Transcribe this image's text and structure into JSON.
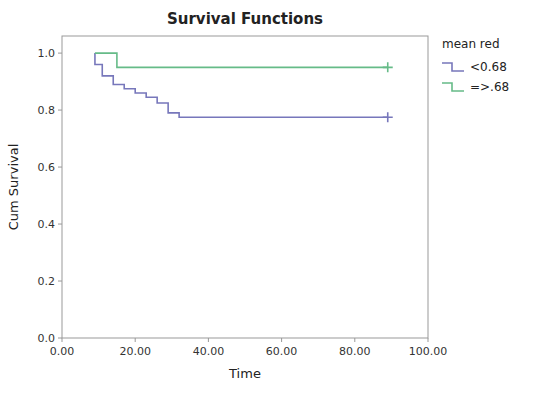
{
  "chart_data": {
    "type": "line",
    "title": "Survival Functions",
    "x_label": "Time",
    "y_label": "Cum Survival",
    "xlim": [
      0,
      100
    ],
    "ylim": [
      0.0,
      1.06
    ],
    "xticks": [
      {
        "value": 0.0,
        "label": "0.00"
      },
      {
        "value": 20.0,
        "label": "20.00"
      },
      {
        "value": 40.0,
        "label": "40.00"
      },
      {
        "value": 60.0,
        "label": "60.00"
      },
      {
        "value": 80.0,
        "label": "80.00"
      },
      {
        "value": 100.0,
        "label": "100.00"
      }
    ],
    "yticks": [
      {
        "value": 0.0,
        "label": "0.0"
      },
      {
        "value": 0.2,
        "label": "0.2"
      },
      {
        "value": 0.4,
        "label": "0.4"
      },
      {
        "value": 0.6,
        "label": "0.6"
      },
      {
        "value": 0.8,
        "label": "0.8"
      },
      {
        "value": 1.0,
        "label": "1.0"
      }
    ],
    "grid": false,
    "legend": "right",
    "legend_title": "mean red",
    "series": [
      {
        "name": "<0.68",
        "color": "#7777bb",
        "marker": "+",
        "x": [
          9,
          9,
          11,
          11,
          14,
          14,
          17,
          17,
          20,
          20,
          23,
          23,
          26,
          26,
          29,
          29,
          32,
          32,
          89
        ],
        "values": [
          1.0,
          0.96,
          0.96,
          0.92,
          0.92,
          0.89,
          0.89,
          0.875,
          0.875,
          0.86,
          0.86,
          0.845,
          0.845,
          0.825,
          0.825,
          0.79,
          0.79,
          0.775,
          0.775
        ],
        "censor_x": [
          89
        ],
        "censor_values": [
          0.775
        ]
      },
      {
        "name": "=>.68",
        "color": "#66bb88",
        "marker": "+",
        "x": [
          9,
          9,
          15,
          15,
          89
        ],
        "values": [
          1.0,
          1.0,
          1.0,
          0.95,
          0.95
        ],
        "censor_x": [
          89
        ],
        "censor_values": [
          0.95
        ]
      }
    ]
  }
}
